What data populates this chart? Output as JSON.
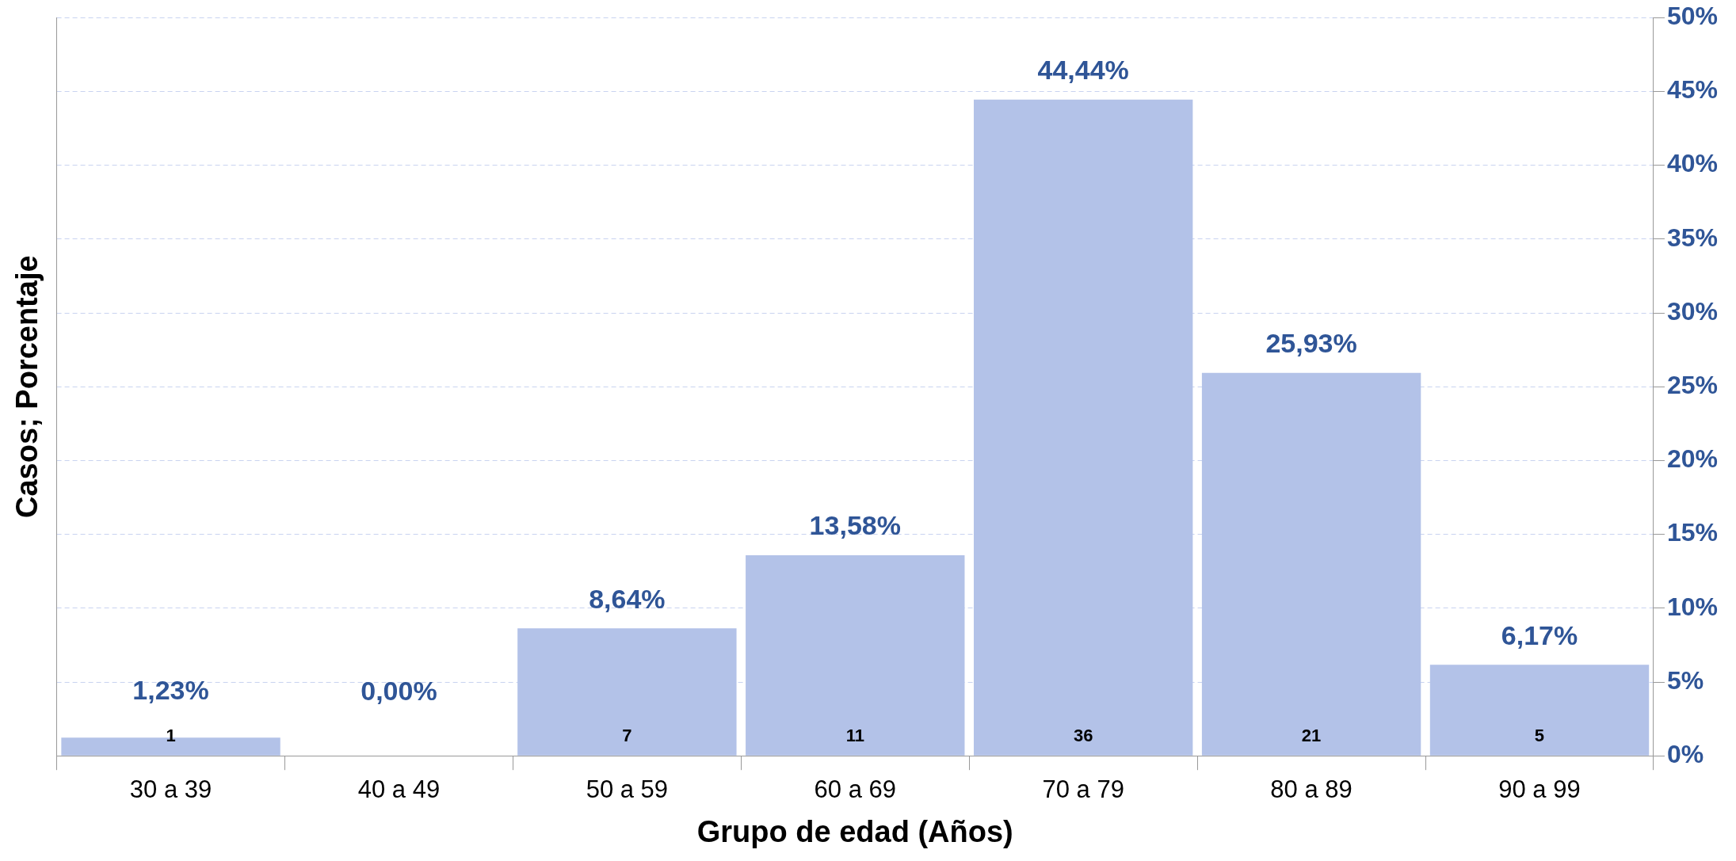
{
  "chart_data": {
    "type": "bar",
    "xlabel": "Grupo de edad (Años)",
    "ylabel": "Casos; Porcentaje",
    "categories": [
      "30 a 39",
      "40 a 49",
      "50 a 59",
      "60 a 69",
      "70 a 79",
      "80 a 89",
      "90 a 99"
    ],
    "series": [
      {
        "color": "#b3c2e8",
        "axis": "y2",
        "values": [
          1.23,
          0,
          8.64,
          13.58,
          44.44,
          25.93,
          6.17
        ],
        "value_labels": [
          "1,23%",
          "0,00%",
          "8,64%",
          "13,58%",
          "44,44%",
          "25,93%",
          "6,17%"
        ]
      }
    ],
    "y2lim": [
      0,
      50
    ],
    "y2ticks": [
      {
        "value": 0,
        "label": "0%"
      },
      {
        "value": 5,
        "label": "5%"
      },
      {
        "value": 10,
        "label": "10%"
      },
      {
        "value": 15,
        "label": "15%"
      },
      {
        "value": 20,
        "label": "20%"
      },
      {
        "value": 25,
        "label": "25%"
      },
      {
        "value": 30,
        "label": "30%"
      },
      {
        "value": 35,
        "label": "35%"
      },
      {
        "value": 40,
        "label": "40%"
      },
      {
        "value": 45,
        "label": "45%"
      },
      {
        "value": 50,
        "label": "50%"
      }
    ],
    "annotations": [
      "1",
      "7",
      "11",
      "36",
      "21",
      "5"
    ],
    "grid": true,
    "legend": false
  }
}
